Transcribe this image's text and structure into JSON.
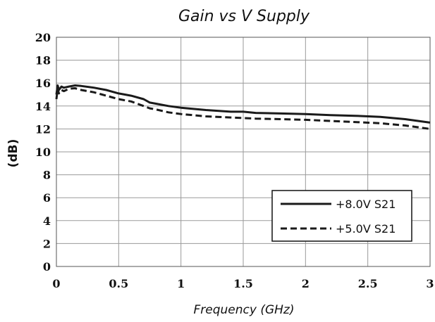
{
  "chart_data": {
    "type": "line",
    "title": "Gain vs V Supply",
    "xlabel": "Frequency (GHz)",
    "ylabel": "(dB)",
    "xlim": [
      0,
      3
    ],
    "ylim": [
      0,
      20
    ],
    "xticks": [
      0,
      0.5,
      1,
      1.5,
      2,
      2.5,
      3
    ],
    "xtick_labels": [
      "0",
      "0.5",
      "1",
      "1.5",
      "2",
      "2.5",
      "3"
    ],
    "yticks": [
      0,
      2,
      4,
      6,
      8,
      10,
      12,
      14,
      16,
      18,
      20
    ],
    "ytick_labels": [
      "0",
      "2",
      "4",
      "6",
      "8",
      "10",
      "12",
      "14",
      "16",
      "18",
      "20"
    ],
    "grid": true,
    "legend_position": "lower-right",
    "series": [
      {
        "name": "+8.0V S21",
        "style": "solid",
        "color": "#1a1a1a",
        "x": [
          0.0,
          0.01,
          0.02,
          0.04,
          0.06,
          0.1,
          0.15,
          0.2,
          0.3,
          0.4,
          0.5,
          0.55,
          0.6,
          0.7,
          0.75,
          0.8,
          0.9,
          1.0,
          1.2,
          1.4,
          1.5,
          1.6,
          1.8,
          2.0,
          2.2,
          2.4,
          2.6,
          2.8,
          3.0
        ],
        "y": [
          15.0,
          15.8,
          15.4,
          15.7,
          15.6,
          15.7,
          15.8,
          15.75,
          15.6,
          15.4,
          15.1,
          15.0,
          14.9,
          14.6,
          14.3,
          14.2,
          14.0,
          13.85,
          13.65,
          13.5,
          13.5,
          13.4,
          13.35,
          13.3,
          13.2,
          13.15,
          13.05,
          12.85,
          12.55
        ]
      },
      {
        "name": "+5.0V S21",
        "style": "dashed",
        "color": "#1a1a1a",
        "x": [
          0.0,
          0.01,
          0.02,
          0.04,
          0.06,
          0.1,
          0.15,
          0.2,
          0.3,
          0.4,
          0.5,
          0.55,
          0.6,
          0.7,
          0.75,
          0.8,
          0.9,
          1.0,
          1.2,
          1.4,
          1.5,
          1.6,
          1.8,
          2.0,
          2.2,
          2.4,
          2.6,
          2.8,
          3.0
        ],
        "y": [
          14.6,
          15.5,
          15.1,
          15.4,
          15.3,
          15.5,
          15.55,
          15.4,
          15.2,
          14.9,
          14.6,
          14.5,
          14.4,
          14.0,
          13.8,
          13.7,
          13.45,
          13.3,
          13.1,
          13.0,
          12.95,
          12.9,
          12.85,
          12.8,
          12.7,
          12.6,
          12.5,
          12.3,
          12.0
        ]
      }
    ]
  }
}
